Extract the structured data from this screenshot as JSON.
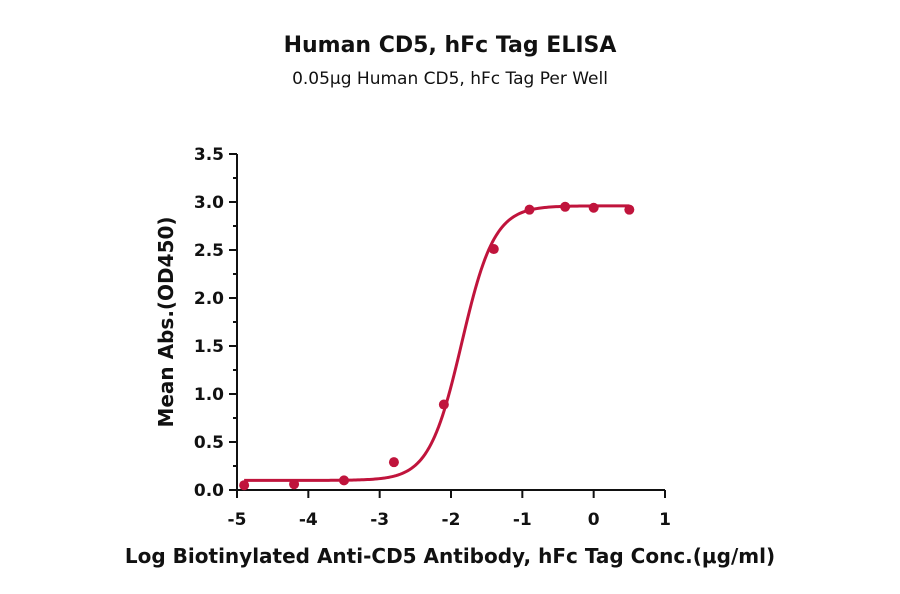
{
  "chart_data": {
    "type": "scatter",
    "title": "Human CD5, hFc Tag ELISA",
    "subtitle": "0.05μg Human CD5, hFc Tag Per Well",
    "xlabel": "Log Biotinylated Anti-CD5 Antibody, hFc Tag Conc.(μg/ml)",
    "ylabel": "Mean Abs.(OD450)",
    "xlim": [
      -5,
      1
    ],
    "ylim": [
      0,
      3.5
    ],
    "xticks": [
      "-5",
      "-4",
      "-3",
      "-2",
      "-1",
      "0",
      "1"
    ],
    "yticks": [
      "0.0",
      "0.5",
      "1.0",
      "1.5",
      "2.0",
      "2.5",
      "3.0",
      "3.5"
    ],
    "color": "#c0143c",
    "series": [
      {
        "points": [
          {
            "x": -4.9,
            "y": 0.05
          },
          {
            "x": -4.2,
            "y": 0.06
          },
          {
            "x": -3.5,
            "y": 0.1
          },
          {
            "x": -2.8,
            "y": 0.29
          },
          {
            "x": -2.1,
            "y": 0.89
          },
          {
            "x": -1.4,
            "y": 2.51
          },
          {
            "x": -0.9,
            "y": 2.92
          },
          {
            "x": -0.4,
            "y": 2.95
          },
          {
            "x": 0.0,
            "y": 2.94
          },
          {
            "x": 0.5,
            "y": 2.92
          }
        ],
        "fit": {
          "model": "4PL",
          "bottom": 0.1,
          "top": 2.96,
          "logEC50": -1.85,
          "hill": 1.9
        }
      }
    ],
    "grid": false
  }
}
